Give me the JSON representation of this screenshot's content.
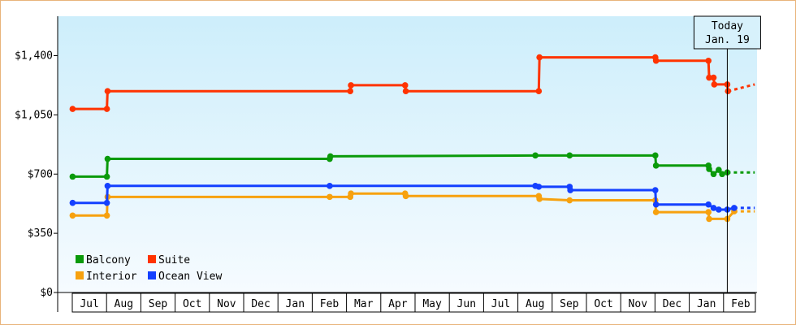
{
  "chart_data": {
    "type": "line",
    "title": "",
    "xlabel": "",
    "ylabel": "",
    "ylim": [
      0,
      1633
    ],
    "y_ticks": [
      {
        "value": 0,
        "label": "$0"
      },
      {
        "value": 350,
        "label": "$350"
      },
      {
        "value": 700,
        "label": "$700"
      },
      {
        "value": 1050,
        "label": "$1,050"
      },
      {
        "value": 1400,
        "label": "$1,400"
      }
    ],
    "x_ticks": [
      "Jul",
      "Aug",
      "Sep",
      "Oct",
      "Nov",
      "Dec",
      "Jan",
      "Feb",
      "Mar",
      "Apr",
      "May",
      "Jun",
      "Jul",
      "Aug",
      "Sep",
      "Oct",
      "Nov",
      "Dec",
      "Jan",
      "Feb"
    ],
    "grid": false,
    "legend_position": "bottom-left",
    "today": {
      "line1": "Today",
      "line2": "Jan. 19",
      "x": 18.6
    },
    "series": [
      {
        "name": "Balcony",
        "color": "#0a9a0a",
        "points": [
          [
            -0.5,
            685
          ],
          [
            0.5,
            685
          ],
          [
            0.52,
            790
          ],
          [
            7.0,
            790
          ],
          [
            7.02,
            805
          ],
          [
            13.0,
            810
          ],
          [
            14.0,
            810
          ],
          [
            16.5,
            810
          ],
          [
            16.52,
            750
          ],
          [
            18.05,
            750
          ],
          [
            18.07,
            730
          ],
          [
            18.2,
            700
          ],
          [
            18.35,
            725
          ],
          [
            18.45,
            700
          ],
          [
            18.6,
            710
          ]
        ],
        "forecast": [
          [
            18.6,
            710
          ],
          [
            19.4,
            710
          ]
        ]
      },
      {
        "name": "Suite",
        "color": "#ff3300",
        "points": [
          [
            -0.5,
            1085
          ],
          [
            0.5,
            1085
          ],
          [
            0.52,
            1190
          ],
          [
            7.6,
            1190
          ],
          [
            7.62,
            1225
          ],
          [
            9.2,
            1225
          ],
          [
            9.22,
            1190
          ],
          [
            13.1,
            1190
          ],
          [
            13.12,
            1390
          ],
          [
            16.5,
            1390
          ],
          [
            16.52,
            1370
          ],
          [
            18.05,
            1370
          ],
          [
            18.07,
            1270
          ],
          [
            18.2,
            1270
          ],
          [
            18.22,
            1230
          ],
          [
            18.6,
            1230
          ],
          [
            18.62,
            1190
          ]
        ],
        "forecast": [
          [
            18.62,
            1190
          ],
          [
            19.4,
            1230
          ]
        ]
      },
      {
        "name": "Interior",
        "color": "#f7a10e",
        "points": [
          [
            -0.5,
            455
          ],
          [
            0.5,
            455
          ],
          [
            0.52,
            565
          ],
          [
            7.0,
            565
          ],
          [
            7.6,
            565
          ],
          [
            7.62,
            585
          ],
          [
            9.2,
            585
          ],
          [
            9.22,
            570
          ],
          [
            13.1,
            570
          ],
          [
            13.12,
            553
          ],
          [
            14.0,
            545
          ],
          [
            16.5,
            545
          ],
          [
            16.52,
            475
          ],
          [
            18.05,
            475
          ],
          [
            18.07,
            435
          ],
          [
            18.6,
            435
          ],
          [
            18.8,
            480
          ]
        ],
        "forecast": [
          [
            18.8,
            480
          ],
          [
            19.4,
            480
          ]
        ]
      },
      {
        "name": "Ocean View",
        "color": "#1440ff",
        "points": [
          [
            -0.5,
            530
          ],
          [
            0.5,
            530
          ],
          [
            0.52,
            630
          ],
          [
            7.0,
            630
          ],
          [
            13.0,
            630
          ],
          [
            13.1,
            625
          ],
          [
            14.0,
            625
          ],
          [
            14.02,
            605
          ],
          [
            16.5,
            605
          ],
          [
            16.52,
            520
          ],
          [
            18.05,
            520
          ],
          [
            18.2,
            500
          ],
          [
            18.35,
            490
          ],
          [
            18.6,
            490
          ],
          [
            18.8,
            500
          ]
        ],
        "forecast": [
          [
            18.8,
            500
          ],
          [
            19.4,
            500
          ]
        ]
      }
    ],
    "legend": [
      {
        "label": "Balcony",
        "color": "#0a9a0a"
      },
      {
        "label": "Suite",
        "color": "#ff3300"
      },
      {
        "label": "Interior",
        "color": "#f7a10e"
      },
      {
        "label": "Ocean View",
        "color": "#1440ff"
      }
    ]
  }
}
